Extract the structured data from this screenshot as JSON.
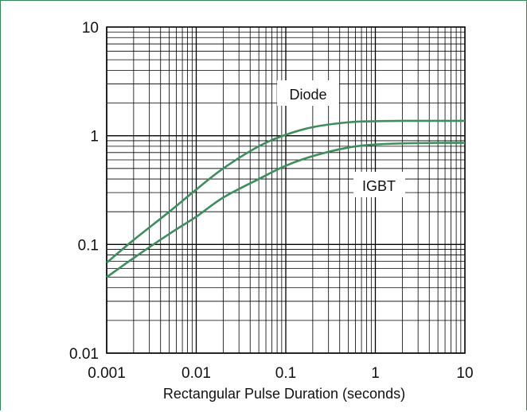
{
  "chart_data": {
    "type": "line",
    "title": "",
    "xlabel": "Rectangular Pulse Duration (seconds)",
    "ylabel": "",
    "x_scale": "log",
    "y_scale": "log",
    "xlim": [
      0.001,
      10
    ],
    "ylim": [
      0.01,
      10
    ],
    "grid": true,
    "x_ticks": [
      0.001,
      0.01,
      0.1,
      1,
      10
    ],
    "x_tick_labels": [
      "0.001",
      "0.01",
      "0.1",
      "1",
      "10"
    ],
    "y_ticks": [
      0.01,
      0.1,
      1,
      10
    ],
    "y_tick_labels": [
      "0.01",
      "0.1",
      "1",
      "10"
    ],
    "series": [
      {
        "name": "Diode",
        "x": [
          0.001,
          0.002,
          0.005,
          0.01,
          0.02,
          0.05,
          0.1,
          0.2,
          0.5,
          1,
          2,
          5,
          10
        ],
        "y": [
          0.068,
          0.11,
          0.2,
          0.32,
          0.5,
          0.8,
          1.02,
          1.2,
          1.33,
          1.36,
          1.37,
          1.37,
          1.37
        ]
      },
      {
        "name": "IGBT",
        "x": [
          0.001,
          0.002,
          0.005,
          0.01,
          0.02,
          0.05,
          0.1,
          0.2,
          0.5,
          1,
          2,
          5,
          10
        ],
        "y": [
          0.05,
          0.075,
          0.125,
          0.18,
          0.27,
          0.4,
          0.53,
          0.65,
          0.78,
          0.83,
          0.85,
          0.86,
          0.86
        ]
      }
    ],
    "colors": {
      "line": "#3a8f5c",
      "grid": "#000000",
      "frame": "#2e8b57"
    }
  }
}
